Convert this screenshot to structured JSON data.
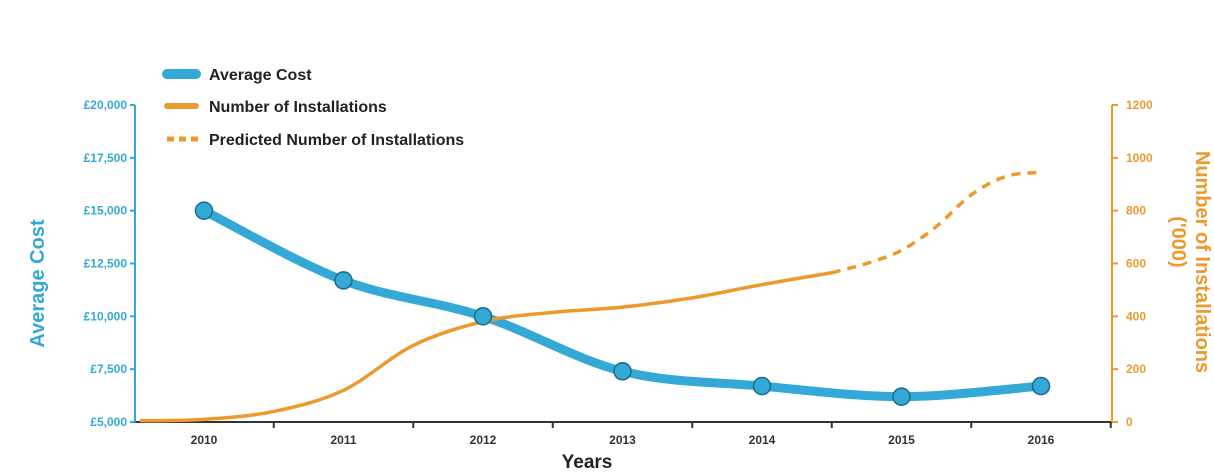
{
  "chart_data": {
    "type": "line",
    "x": [
      "2010",
      "2011",
      "2012",
      "2013",
      "2014",
      "2015",
      "2016"
    ],
    "xlabel": "Years",
    "ylabel_left": "Average Cost",
    "ylabel_right": "Number of Installations\n('000)",
    "ylim_left": [
      5000,
      20000
    ],
    "ylim_right": [
      0,
      1200
    ],
    "yticks_left": [
      "£5,000",
      "£7,500",
      "£10,000",
      "£12,500",
      "£15,000",
      "£17,500",
      "£20,000"
    ],
    "yticks_right": [
      "0",
      "200",
      "400",
      "600",
      "800",
      "1000",
      "1200"
    ],
    "legend": [
      {
        "label": "Average Cost",
        "style": "thick-solid",
        "color": "#35a9d6"
      },
      {
        "label": "Number of Installations",
        "style": "solid",
        "color": "#ec9a2e"
      },
      {
        "label": "Predicted Number of Installations",
        "style": "dashed",
        "color": "#ec9a2e"
      }
    ],
    "legend_position": "top-left",
    "grid": false,
    "series": [
      {
        "name": "Average Cost",
        "axis": "left",
        "color": "#35a9d6",
        "x": [
          2010,
          2011,
          2012,
          2013,
          2014,
          2015,
          2016
        ],
        "values": [
          15000,
          11700,
          10000,
          7400,
          6700,
          6200,
          6700
        ],
        "markers": true
      },
      {
        "name": "Number of Installations",
        "axis": "right",
        "color": "#ec9a2e",
        "x": [
          2009.55,
          2010,
          2010.5,
          2011,
          2011.5,
          2012,
          2012.5,
          2013,
          2013.5,
          2014,
          2014.5
        ],
        "values": [
          5,
          10,
          40,
          120,
          290,
          380,
          415,
          435,
          470,
          520,
          565
        ]
      },
      {
        "name": "Predicted Number of Installations",
        "axis": "right",
        "color": "#ec9a2e",
        "dashed": true,
        "x": [
          2014.5,
          2014.75,
          2015,
          2015.25,
          2015.5,
          2015.75,
          2016
        ],
        "values": [
          565,
          600,
          650,
          740,
          860,
          930,
          945
        ]
      }
    ]
  }
}
